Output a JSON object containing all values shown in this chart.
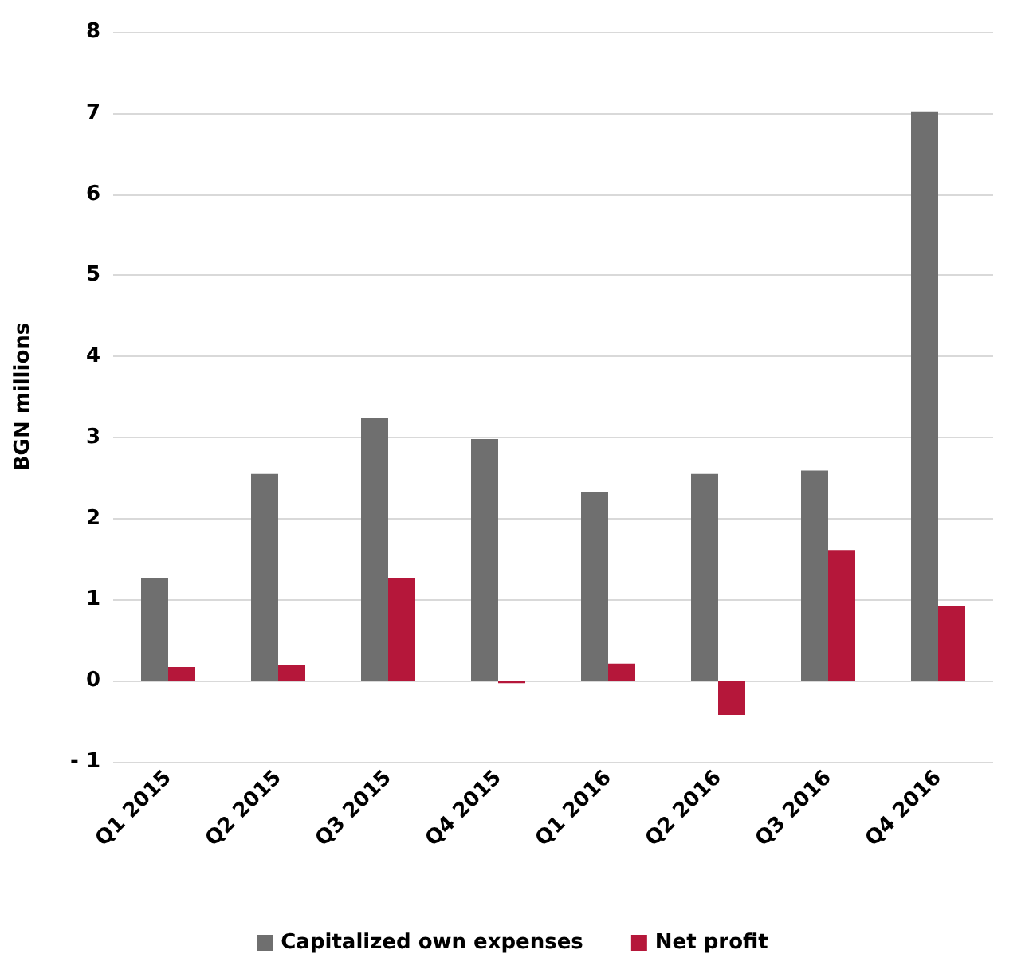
{
  "chart_data": {
    "type": "bar",
    "ylabel": "BGN millions",
    "categories": [
      "Q1 2015",
      "Q2 2015",
      "Q3 2015",
      "Q4 2015",
      "Q1 2016",
      "Q2 2016",
      "Q3 2016",
      "Q4 2016"
    ],
    "series": [
      {
        "name": "Capitalized own expenses",
        "color": "#6f6f6f",
        "values": [
          1.27,
          2.55,
          3.24,
          2.98,
          2.32,
          2.55,
          2.59,
          7.02
        ]
      },
      {
        "name": "Net profit",
        "color": "#b5173a",
        "values": [
          0.17,
          0.19,
          1.27,
          -0.03,
          0.21,
          -0.42,
          1.61,
          0.92
        ]
      }
    ],
    "ylim": [
      -1,
      8
    ],
    "yticks": [
      {
        "value": -1,
        "label": "- 1"
      },
      0,
      1,
      2,
      3,
      4,
      5,
      6,
      7,
      8
    ],
    "grid": "y",
    "legend": "bottom"
  }
}
